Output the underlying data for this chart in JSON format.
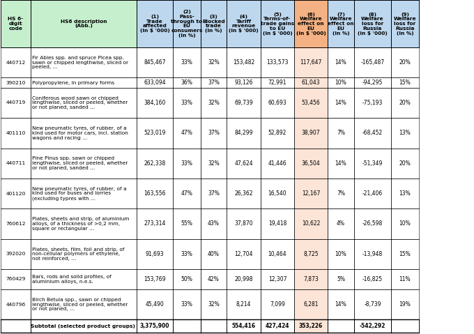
{
  "col_headers": [
    "HS 6-\ndigit\ncode",
    "HS6 description\n(Abb.)",
    "(1)\nTrade\naffected\n(in $ '000)",
    "(2)\nPass-\nthrough to\nEU\nconsumers\n(in %)",
    "(3)\nBlocked\ntrade\n(in %)",
    "(4)\nTariff\nrevenue\n(in $ '000)",
    "(5)\nTerms-of-\ntrade gains\nto EU\n(in $ '000)",
    "(6)\nWelfare\neffect on\nEU\n(in $ '000)",
    "(7)\nWelfare\neffect on\nEU\n(in %)",
    "(8)\nWelfare\nloss for\nRussia\n(in $ '000)",
    "(9)\nWelfare\nloss for\nRussia\n(in %)"
  ],
  "rows": [
    {
      "code": "440712",
      "desc": "Fir Abies spp. and spruce Picea spp.\nsawn or chipped lengthwise, sliced or\npeeled, ...",
      "c1": "845,467",
      "c2": "33%",
      "c3": "32%",
      "c4": "153,482",
      "c5": "133,573",
      "c6": "117,647",
      "c7": "14%",
      "c8": "-165,487",
      "c9": "20%"
    },
    {
      "code": "390210",
      "desc": "Polypropylene, in primary forms",
      "c1": "633,094",
      "c2": "36%",
      "c3": "37%",
      "c4": "93,126",
      "c5": "72,991",
      "c6": "61,043",
      "c7": "10%",
      "c8": "-94,295",
      "c9": "15%"
    },
    {
      "code": "440719",
      "desc": "Coniferous wood sawn or chipped\nlengthwise, sliced or peeled, whether\nor not planed, sanded ...",
      "c1": "384,160",
      "c2": "33%",
      "c3": "32%",
      "c4": "69,739",
      "c5": "60,693",
      "c6": "53,456",
      "c7": "14%",
      "c8": "-75,193",
      "c9": "20%"
    },
    {
      "code": "401110",
      "desc": "New pneumatic tyres, of rubber, of a\nkind used for motor cars, incl. station\nwagons and racing ...",
      "c1": "523,019",
      "c2": "47%",
      "c3": "37%",
      "c4": "84,299",
      "c5": "52,892",
      "c6": "38,907",
      "c7": "7%",
      "c8": "-68,452",
      "c9": "13%"
    },
    {
      "code": "440711",
      "desc": "Pine Pinus spp. sawn or chipped\nlengthwise, sliced or peeled, whether\nor not planed, sanded ...",
      "c1": "262,338",
      "c2": "33%",
      "c3": "32%",
      "c4": "47,624",
      "c5": "41,446",
      "c6": "36,504",
      "c7": "14%",
      "c8": "-51,349",
      "c9": "20%"
    },
    {
      "code": "401120",
      "desc": "New pneumatic tyres, of rubber, of a\nkind used for buses and lorries\n(excluding typres with ...",
      "c1": "163,556",
      "c2": "47%",
      "c3": "37%",
      "c4": "26,362",
      "c5": "16,540",
      "c6": "12,167",
      "c7": "7%",
      "c8": "-21,406",
      "c9": "13%"
    },
    {
      "code": "760612",
      "desc": "Plates, sheets and strip, of aluminium\nalloys, of a thickness of >0,2 mm,\nsquare or rectangular ...",
      "c1": "273,314",
      "c2": "55%",
      "c3": "43%",
      "c4": "37,870",
      "c5": "19,418",
      "c6": "10,622",
      "c7": "4%",
      "c8": "-26,598",
      "c9": "10%"
    },
    {
      "code": "392020",
      "desc": "Plates, sheets, film, foil and strip, of\nnon-cellular polymers of ethylene,\nnot reinforced, ...",
      "c1": "91,693",
      "c2": "33%",
      "c3": "40%",
      "c4": "12,704",
      "c5": "10,464",
      "c6": "8,725",
      "c7": "10%",
      "c8": "-13,948",
      "c9": "15%"
    },
    {
      "code": "760429",
      "desc": "Bars, rods and solid profiles, of\naluminium alloys, n.e.s.",
      "c1": "153,769",
      "c2": "50%",
      "c3": "42%",
      "c4": "20,998",
      "c5": "12,307",
      "c6": "7,873",
      "c7": "5%",
      "c8": "-16,825",
      "c9": "11%"
    },
    {
      "code": "440796",
      "desc": "Birch Betula spp., sawn or chipped\nlengthwise, sliced or peeled, whether\nor not planed, ...",
      "c1": "45,490",
      "c2": "33%",
      "c3": "32%",
      "c4": "8,214",
      "c5": "7,099",
      "c6": "6,281",
      "c7": "14%",
      "c8": "-8,739",
      "c9": "19%"
    }
  ],
  "subtotal": {
    "label": "Subtotal (selected product groups)",
    "c1": "3,375,900",
    "c4": "554,416",
    "c5": "427,424",
    "c6": "353,226",
    "c8": "-542,292"
  },
  "hdr_green": "#c6efce",
  "hdr_blue": "#bdd7ee",
  "hdr_orange": "#f4b183",
  "data_orange": "#fce4d6",
  "border_dark": "#000000",
  "border_light": "#a0a0a0",
  "white": "#ffffff"
}
